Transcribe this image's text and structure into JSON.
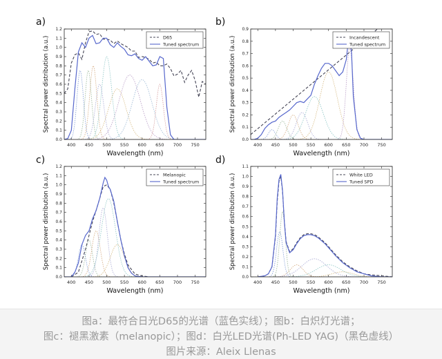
{
  "caption": {
    "line1": "图a：最符合日光D65的光谱（蓝色实线）；图b：白炽灯光谱；",
    "line2": "图c：褪黑激素（melanopic）；图d：白光LED光谱(Ph-LED YAG)（黑色虚线）",
    "line3": "图片来源：Aleix Llenas"
  },
  "chart_data": [
    {
      "panel_label": "a)",
      "type": "line",
      "xlabel": "Wavelength (nm)",
      "ylabel": "Spectral power distribution (a.u.)",
      "xlim": [
        380,
        780
      ],
      "ylim": [
        0,
        1.2
      ],
      "xticks": [
        400,
        450,
        500,
        550,
        600,
        650,
        700,
        750
      ],
      "yticks": [
        0.0,
        0.1,
        0.2,
        0.3,
        0.4,
        0.5,
        0.6,
        0.7,
        0.8,
        0.9,
        1.0,
        1.1,
        1.2
      ],
      "legend_position": "top-right",
      "series": [
        {
          "name": "D65",
          "style": "dashed",
          "color": "#444455",
          "x": [
            380,
            390,
            400,
            410,
            420,
            430,
            440,
            450,
            460,
            470,
            480,
            490,
            500,
            510,
            520,
            530,
            540,
            550,
            560,
            570,
            580,
            590,
            600,
            610,
            620,
            630,
            640,
            650,
            660,
            670,
            680,
            690,
            700,
            710,
            720,
            730,
            740,
            750,
            760,
            770,
            780
          ],
          "y": [
            0.5,
            0.55,
            0.83,
            0.92,
            0.94,
            0.87,
            1.05,
            1.17,
            1.18,
            1.14,
            1.15,
            1.09,
            1.09,
            1.08,
            1.04,
            1.07,
            1.04,
            1.02,
            1.0,
            0.96,
            0.96,
            0.89,
            0.9,
            0.89,
            0.87,
            0.83,
            0.84,
            0.8,
            0.8,
            0.82,
            0.77,
            0.69,
            0.71,
            0.75,
            0.62,
            0.7,
            0.75,
            0.64,
            0.46,
            0.63,
            0.6
          ]
        },
        {
          "name": "Tuned spectrum",
          "style": "solid",
          "color": "#5566cc",
          "x": [
            380,
            390,
            400,
            410,
            420,
            430,
            440,
            450,
            460,
            470,
            480,
            490,
            500,
            510,
            520,
            530,
            540,
            550,
            560,
            570,
            580,
            590,
            600,
            610,
            620,
            630,
            640,
            650,
            660,
            670,
            680,
            690,
            700,
            710,
            720,
            730,
            740,
            750,
            760,
            770,
            780
          ],
          "y": [
            0.0,
            0.01,
            0.1,
            0.55,
            0.95,
            1.05,
            1.0,
            1.1,
            1.13,
            1.04,
            1.05,
            1.1,
            1.1,
            1.03,
            1.0,
            1.05,
            1.01,
            0.98,
            0.92,
            0.91,
            0.93,
            0.88,
            0.86,
            0.9,
            0.85,
            0.8,
            0.81,
            0.9,
            0.88,
            0.35,
            0.05,
            0.0,
            0.0,
            0.0,
            0.0,
            0.0,
            0.0,
            0.0,
            0.0,
            0.0,
            0.0
          ]
        }
      ],
      "components": [
        {
          "peak": 425,
          "height": 0.75,
          "width": 9
        },
        {
          "peak": 448,
          "height": 0.75,
          "width": 9
        },
        {
          "peak": 462,
          "height": 0.8,
          "width": 10
        },
        {
          "peak": 480,
          "height": 0.6,
          "width": 12
        },
        {
          "peak": 500,
          "height": 0.9,
          "width": 14
        },
        {
          "peak": 530,
          "height": 0.55,
          "width": 25
        },
        {
          "peak": 565,
          "height": 0.7,
          "width": 30
        },
        {
          "peak": 600,
          "height": 0.65,
          "width": 28
        },
        {
          "peak": 650,
          "height": 0.6,
          "width": 10
        }
      ]
    },
    {
      "panel_label": "b)",
      "type": "line",
      "xlabel": "Wavelength (nm)",
      "ylabel": "Spectral power distribution (a.u.)",
      "xlim": [
        380,
        780
      ],
      "ylim": [
        0,
        0.9
      ],
      "xticks": [
        400,
        450,
        500,
        550,
        600,
        650,
        700,
        750
      ],
      "yticks": [
        0.0,
        0.1,
        0.2,
        0.3,
        0.4,
        0.5,
        0.6,
        0.7,
        0.8,
        0.9
      ],
      "legend_position": "top-right",
      "series": [
        {
          "name": "Incandescent",
          "style": "dashed",
          "color": "#444455",
          "x": [
            380,
            780
          ],
          "y": [
            0.04,
            1.0
          ]
        },
        {
          "name": "Tuned spectrum",
          "style": "solid",
          "color": "#5566cc",
          "x": [
            380,
            390,
            400,
            410,
            420,
            430,
            440,
            450,
            460,
            470,
            480,
            490,
            500,
            510,
            520,
            530,
            540,
            550,
            560,
            570,
            580,
            590,
            600,
            610,
            620,
            630,
            640,
            650,
            655,
            660,
            665,
            670,
            680,
            690,
            700,
            720,
            750,
            780
          ],
          "y": [
            0.0,
            0.0,
            0.01,
            0.04,
            0.09,
            0.12,
            0.14,
            0.15,
            0.18,
            0.2,
            0.22,
            0.24,
            0.27,
            0.3,
            0.31,
            0.3,
            0.33,
            0.36,
            0.45,
            0.52,
            0.58,
            0.62,
            0.62,
            0.6,
            0.56,
            0.52,
            0.55,
            0.65,
            0.78,
            0.85,
            0.7,
            0.35,
            0.08,
            0.01,
            0.0,
            0.0,
            0.0,
            0.0
          ]
        }
      ],
      "components": [
        {
          "peak": 440,
          "height": 0.08,
          "width": 10
        },
        {
          "peak": 470,
          "height": 0.15,
          "width": 12
        },
        {
          "peak": 500,
          "height": 0.2,
          "width": 14
        },
        {
          "peak": 525,
          "height": 0.22,
          "width": 16
        },
        {
          "peak": 560,
          "height": 0.35,
          "width": 25
        },
        {
          "peak": 600,
          "height": 0.55,
          "width": 25
        },
        {
          "peak": 660,
          "height": 0.75,
          "width": 10
        }
      ]
    },
    {
      "panel_label": "c)",
      "type": "line",
      "xlabel": "Wavelength (nm)",
      "ylabel": "Spectral power distribution (a.u.)",
      "xlim": [
        380,
        780
      ],
      "ylim": [
        0,
        1.2
      ],
      "xticks": [
        400,
        450,
        500,
        550,
        600,
        650,
        700,
        750
      ],
      "yticks": [
        0.0,
        0.1,
        0.2,
        0.3,
        0.4,
        0.5,
        0.6,
        0.7,
        0.8,
        0.9,
        1.0,
        1.1,
        1.2
      ],
      "legend_position": "top-right",
      "series": [
        {
          "name": "Melanopic",
          "style": "dashed",
          "color": "#444455",
          "x": [
            400,
            420,
            440,
            460,
            470,
            480,
            490,
            500,
            510,
            520,
            530,
            540,
            550,
            560,
            580,
            600,
            620,
            650
          ],
          "y": [
            0.0,
            0.05,
            0.3,
            0.6,
            0.72,
            0.85,
            0.98,
            1.0,
            0.95,
            0.8,
            0.6,
            0.4,
            0.25,
            0.13,
            0.03,
            0.01,
            0.0,
            0.0
          ]
        },
        {
          "name": "Tuned spectrum",
          "style": "solid",
          "color": "#5566cc",
          "x": [
            380,
            400,
            410,
            420,
            430,
            440,
            450,
            460,
            470,
            480,
            490,
            495,
            500,
            505,
            510,
            520,
            530,
            540,
            550,
            560,
            570,
            580,
            600,
            620,
            650,
            700,
            780
          ],
          "y": [
            0.0,
            0.0,
            0.05,
            0.15,
            0.35,
            0.45,
            0.5,
            0.63,
            0.72,
            0.85,
            1.02,
            1.08,
            1.05,
            0.98,
            0.95,
            0.82,
            0.6,
            0.4,
            0.23,
            0.1,
            0.04,
            0.01,
            0.0,
            0.0,
            0.0,
            0.0,
            0.0
          ]
        }
      ],
      "components": [
        {
          "peak": 430,
          "height": 0.35,
          "width": 10
        },
        {
          "peak": 450,
          "height": 0.4,
          "width": 10
        },
        {
          "peak": 470,
          "height": 0.5,
          "width": 12
        },
        {
          "peak": 490,
          "height": 0.75,
          "width": 12
        },
        {
          "peak": 505,
          "height": 0.85,
          "width": 20
        },
        {
          "peak": 530,
          "height": 0.35,
          "width": 20
        }
      ]
    },
    {
      "panel_label": "d)",
      "type": "line",
      "xlabel": "Wavelength (nm)",
      "ylabel": "Spectral power distribution (a.u.)",
      "xlim": [
        380,
        780
      ],
      "ylim": [
        0,
        1.1
      ],
      "xticks": [
        400,
        450,
        500,
        550,
        600,
        650,
        700,
        750
      ],
      "yticks": [
        0.0,
        0.1,
        0.2,
        0.3,
        0.4,
        0.5,
        0.6,
        0.7,
        0.8,
        0.9,
        1.0,
        1.1
      ],
      "legend_position": "top-right",
      "series": [
        {
          "name": "White LED",
          "style": "dashed",
          "color": "#444455",
          "x": [
            400,
            420,
            430,
            440,
            450,
            455,
            460,
            465,
            470,
            475,
            480,
            490,
            500,
            510,
            520,
            530,
            540,
            550,
            560,
            570,
            580,
            590,
            600,
            620,
            640,
            660,
            680,
            700,
            720,
            750,
            780
          ],
          "y": [
            0.0,
            0.01,
            0.03,
            0.1,
            0.4,
            0.75,
            0.95,
            1.0,
            0.85,
            0.55,
            0.35,
            0.25,
            0.28,
            0.34,
            0.39,
            0.42,
            0.43,
            0.43,
            0.42,
            0.4,
            0.37,
            0.34,
            0.3,
            0.22,
            0.15,
            0.1,
            0.06,
            0.03,
            0.02,
            0.01,
            0.0
          ]
        },
        {
          "name": "Tuned SPD",
          "style": "solid",
          "color": "#5566cc",
          "x": [
            400,
            420,
            430,
            440,
            450,
            455,
            460,
            465,
            470,
            475,
            480,
            490,
            500,
            510,
            520,
            530,
            540,
            550,
            560,
            570,
            580,
            590,
            600,
            620,
            640,
            660,
            680,
            700,
            720,
            750,
            780
          ],
          "y": [
            0.0,
            0.01,
            0.03,
            0.1,
            0.42,
            0.78,
            0.97,
            1.02,
            0.86,
            0.55,
            0.34,
            0.24,
            0.27,
            0.33,
            0.38,
            0.41,
            0.42,
            0.42,
            0.41,
            0.39,
            0.36,
            0.33,
            0.29,
            0.21,
            0.14,
            0.09,
            0.05,
            0.03,
            0.01,
            0.0,
            0.0
          ]
        }
      ],
      "components": [
        {
          "peak": 462,
          "height": 0.45,
          "width": 9
        },
        {
          "peak": 470,
          "height": 0.65,
          "width": 8
        },
        {
          "peak": 510,
          "height": 0.12,
          "width": 18
        },
        {
          "peak": 560,
          "height": 0.18,
          "width": 35
        },
        {
          "peak": 600,
          "height": 0.12,
          "width": 35
        },
        {
          "peak": 640,
          "height": 0.05,
          "width": 30
        }
      ]
    }
  ]
}
